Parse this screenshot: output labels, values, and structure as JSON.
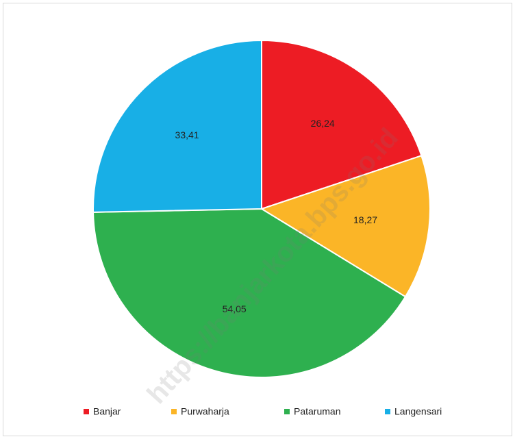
{
  "chart_data": {
    "type": "pie",
    "categories": [
      "Banjar",
      "Purwaharja",
      "Pataruman",
      "Langensari"
    ],
    "values": [
      26.24,
      18.27,
      54.05,
      33.41
    ],
    "value_labels": [
      "26,24",
      "18,27",
      "54,05",
      "33,41"
    ],
    "colors": [
      "#ED1C24",
      "#FBB527",
      "#2EB04F",
      "#18AFE6"
    ],
    "legend": "bottom"
  },
  "watermark": "https://banjarkota.bps.go.id"
}
